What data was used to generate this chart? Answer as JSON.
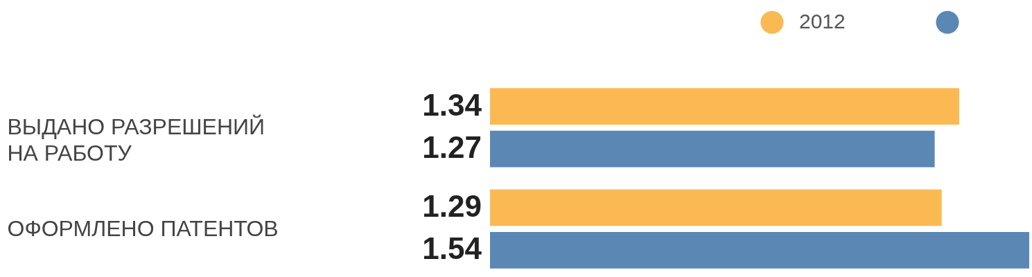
{
  "chart_data": {
    "type": "bar",
    "orientation": "horizontal",
    "categories": [
      "ВЫДАНО РАЗРЕШЕНИЙ НА РАБОТУ",
      "ОФОРМЛЕНО ПАТЕНТОВ"
    ],
    "series": [
      {
        "name": "2012",
        "color": "#fbb954",
        "values": [
          1.34,
          1.29
        ]
      },
      {
        "color": "#5b87b5",
        "values": [
          1.27,
          1.54
        ]
      }
    ],
    "data_labels": true,
    "legend": "top right",
    "grid": false
  }
}
